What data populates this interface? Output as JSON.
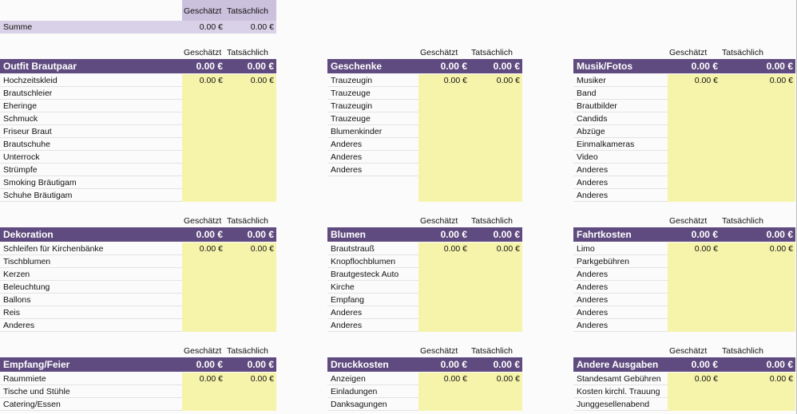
{
  "summary": {
    "headers": [
      "Geschätzt",
      "Tatsächlich"
    ],
    "label": "Summe",
    "values": [
      "0.00 €",
      "0.00 €"
    ]
  },
  "sections": [
    {
      "title": "Outfit Brautpaar",
      "headers": [
        "Geschätzt",
        "Tatsächlich"
      ],
      "totals": [
        "0.00 €",
        "0.00 €"
      ],
      "item_values": [
        "0.00 €",
        "0.00 €"
      ],
      "items": [
        "Hochzeitskleid",
        "Brautschleier",
        "Eheringe",
        "Schmuck",
        "Friseur Braut",
        "Brautschuhe",
        "Unterrock",
        "Strümpfe",
        "Smoking Bräutigam",
        "Schuhe Bräutigam"
      ]
    },
    {
      "title": "Geschenke",
      "headers": [
        "Geschätzt",
        "Tatsächlich"
      ],
      "totals": [
        "0.00 €",
        "0.00 €"
      ],
      "item_values": [
        "0.00 €",
        "0.00 €"
      ],
      "items": [
        "Trauzeugin",
        "Trauzeuge",
        "Trauzeugin",
        "Trauzeuge",
        "Blumenkinder",
        "Anderes",
        "Anderes",
        "Anderes"
      ]
    },
    {
      "title": "Musik/Fotos",
      "headers": [
        "Geschätzt",
        "Tatsächlich"
      ],
      "totals": [
        "0.00 €",
        "0.00 €"
      ],
      "item_values": [
        "0.00 €",
        "0.00 €"
      ],
      "items": [
        "Musiker",
        "Band",
        "Brautbilder",
        "Candids",
        "Abzüge",
        "Einmalkameras",
        "Video",
        "Anderes",
        "Anderes",
        "Anderes"
      ]
    },
    {
      "title": "Dekoration",
      "headers": [
        "Geschätzt",
        "Tatsächlich"
      ],
      "totals": [
        "0.00 €",
        "0.00 €"
      ],
      "item_values": [
        "0.00 €",
        "0.00 €"
      ],
      "items": [
        "Schleifen für Kirchenbänke",
        "Tischblumen",
        "Kerzen",
        "Beleuchtung",
        "Ballons",
        "Reis",
        "Anderes"
      ]
    },
    {
      "title": "Blumen",
      "headers": [
        "Geschätzt",
        "Tatsächlich"
      ],
      "totals": [
        "0.00 €",
        "0.00 €"
      ],
      "item_values": [
        "0.00 €",
        "0.00 €"
      ],
      "items": [
        "Brautstrauß",
        "Knopflochblumen",
        "Brautgesteck Auto",
        "Kirche",
        "Empfang",
        "Anderes",
        "Anderes"
      ]
    },
    {
      "title": "Fahrtkosten",
      "headers": [
        "Geschätzt",
        "Tatsächlich"
      ],
      "totals": [
        "0.00 €",
        "0.00 €"
      ],
      "item_values": [
        "0.00 €",
        "0.00 €"
      ],
      "items": [
        "Limo",
        "Parkgebühren",
        "Anderes",
        "Anderes",
        "Anderes",
        "Anderes",
        "Anderes"
      ]
    },
    {
      "title": "Empfang/Feier",
      "headers": [
        "Geschätzt",
        "Tatsächlich"
      ],
      "totals": [
        "0.00 €",
        "0.00 €"
      ],
      "item_values": [
        "0.00 €",
        "0.00 €"
      ],
      "items": [
        "Raummiete",
        "Tische und Stühle",
        "Catering/Essen"
      ]
    },
    {
      "title": "Druckkosten",
      "headers": [
        "Geschätzt",
        "Tatsächlich"
      ],
      "totals": [
        "0.00 €",
        "0.00 €"
      ],
      "item_values": [
        "0.00 €",
        "0.00 €"
      ],
      "items": [
        "Anzeigen",
        "Einladungen",
        "Danksagungen"
      ]
    },
    {
      "title": "Andere Ausgaben",
      "headers": [
        "Geschätzt",
        "Tatsächlich"
      ],
      "totals": [
        "0.00 €",
        "0.00 €"
      ],
      "item_values": [
        "0.00 €",
        "0.00 €"
      ],
      "items": [
        "Standesamt Gebühren",
        "Kosten kirchl. Trauung",
        "Junggesellenabend"
      ]
    }
  ]
}
